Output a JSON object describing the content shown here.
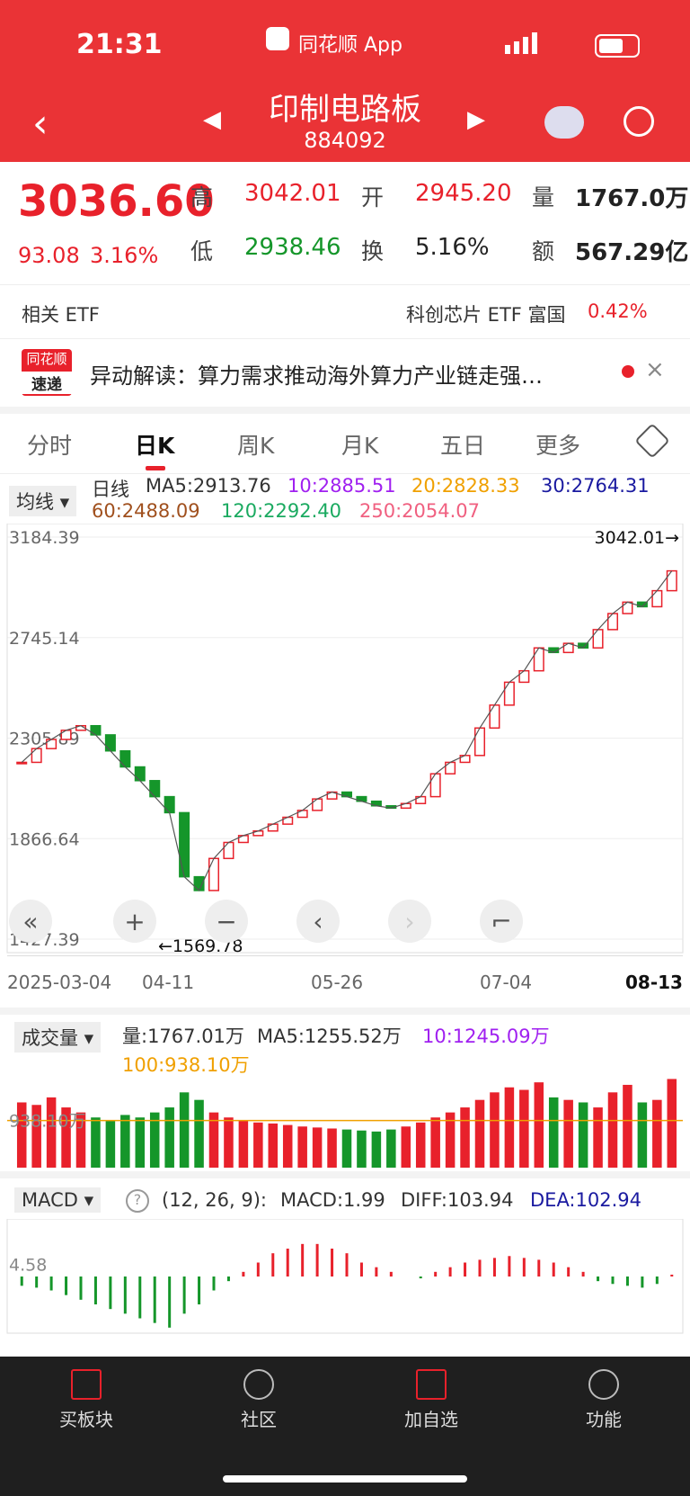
{
  "status_bar": {
    "time": "21:31",
    "app": "同花顺 App"
  },
  "header": {
    "title": "印制电路板",
    "code": "884092"
  },
  "quote": {
    "price": "3036.60",
    "change": "93.08",
    "change_pct": "3.16%",
    "stats": [
      {
        "label": "高",
        "value": "3042.01"
      },
      {
        "label": "开",
        "value": "2945.20"
      },
      {
        "label": "量",
        "value": "1767.0万"
      },
      {
        "label": "低",
        "value": "2938.46"
      },
      {
        "label": "换",
        "value": "5.16%"
      },
      {
        "label": "额",
        "value": "567.29亿"
      }
    ]
  },
  "etf": {
    "label": "相关 ETF",
    "name": "科创芯片 ETF 富国",
    "pct": "0.42%"
  },
  "news": {
    "badge_top": "同花顺",
    "badge_bottom": "速递",
    "text": "异动解读：算力需求推动海外算力产业链走强…"
  },
  "tabs": [
    "分时",
    "日K",
    "周K",
    "月K",
    "五日",
    "更多"
  ],
  "kline": {
    "indicator": "均线",
    "period": "日线",
    "ma": [
      {
        "label": "MA5:2913.76",
        "color": "#333333"
      },
      {
        "label": "10:2885.51",
        "color": "#a020f0"
      },
      {
        "label": "20:2828.33",
        "color": "#f0a000"
      },
      {
        "label": "30:2764.31",
        "color": "#1a1aa0"
      },
      {
        "label": "60:2488.09",
        "color": "#a0501e"
      },
      {
        "label": "120:2292.40",
        "color": "#1aaa60"
      },
      {
        "label": "250:2054.07",
        "color": "#f06080"
      }
    ],
    "ylim": [
      1427.39,
      3184.39
    ],
    "yticks": [
      3184.39,
      2745.14,
      2305.89,
      1866.64,
      1427.39
    ],
    "high_label": "3042.01→",
    "low_label": "←1569.78",
    "dates": [
      "2025-03-04",
      "04-11",
      "05-26",
      "07-04",
      "08-13"
    ],
    "closes": [
      2200,
      2260,
      2300,
      2340,
      2360,
      2320,
      2250,
      2180,
      2120,
      2050,
      1980,
      1700,
      1640,
      1780,
      1850,
      1880,
      1900,
      1930,
      1960,
      1990,
      2040,
      2070,
      2050,
      2030,
      2010,
      2000,
      2020,
      2050,
      2150,
      2200,
      2230,
      2350,
      2450,
      2550,
      2600,
      2700,
      2680,
      2720,
      2700,
      2780,
      2850,
      2900,
      2880,
      2950,
      3036.6
    ]
  },
  "volume": {
    "indicator": "成交量",
    "labels": [
      "量:1767.01万",
      "MA5:1255.52万",
      "10:1245.09万",
      "100:938.10万"
    ],
    "ylim": [
      0,
      1900
    ],
    "yticks": [
      {
        "value": 938.1,
        "label": "938.10万"
      }
    ],
    "values": [
      1300,
      1250,
      1400,
      1200,
      1100,
      1000,
      950,
      1050,
      1000,
      1100,
      1200,
      1500,
      1350,
      1100,
      1000,
      950,
      900,
      880,
      850,
      820,
      800,
      780,
      760,
      740,
      720,
      760,
      820,
      900,
      1000,
      1100,
      1200,
      1350,
      1500,
      1600,
      1550,
      1700,
      1400,
      1350,
      1300,
      1200,
      1500,
      1650,
      1300,
      1350,
      1767.01
    ]
  },
  "macd": {
    "indicator": "MACD",
    "params": "(12, 26, 9):",
    "labels": [
      "MACD:1.99",
      "DIFF:103.94",
      "DEA:102.94"
    ],
    "ylim": [
      -60,
      60
    ],
    "yticks": [
      4.58
    ],
    "hist": [
      -10,
      -12,
      -15,
      -20,
      -25,
      -30,
      -35,
      -40,
      -45,
      -50,
      -55,
      -40,
      -30,
      -15,
      -5,
      5,
      15,
      25,
      30,
      35,
      35,
      30,
      25,
      15,
      10,
      5,
      0,
      -2,
      5,
      10,
      15,
      18,
      20,
      22,
      20,
      18,
      15,
      10,
      5,
      -5,
      -8,
      -10,
      -12,
      -8,
      2
    ]
  },
  "bottom_nav": [
    "买板块",
    "社区",
    "加自选",
    "功能"
  ]
}
